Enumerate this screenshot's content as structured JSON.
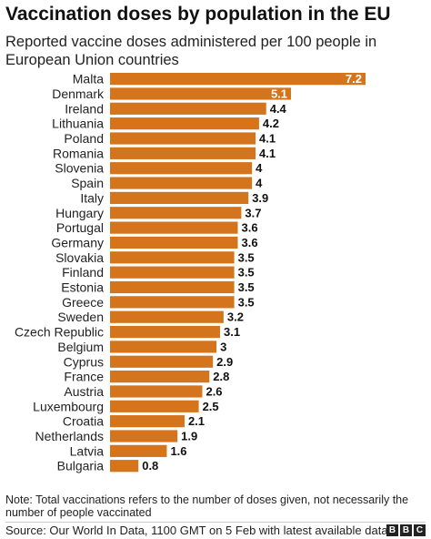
{
  "title": "Vaccination doses by population in the EU",
  "subtitle": "Reported vaccine doses administered per 100 people in European Union countries",
  "note": "Note: Total vaccinations refers to the number of doses given, not necessarily the number of people vaccinated",
  "source": "Source: Our World In Data, 1100 GMT on 5 Feb with latest available data",
  "logo": [
    "B",
    "B",
    "C"
  ],
  "colors": {
    "bar": "#d4751d",
    "inside_label": "#ffffff",
    "outside_label": "#111111"
  },
  "chart_data": {
    "type": "bar",
    "orientation": "horizontal",
    "categories": [
      "Malta",
      "Denmark",
      "Ireland",
      "Lithuania",
      "Poland",
      "Romania",
      "Slovenia",
      "Spain",
      "Italy",
      "Hungary",
      "Portugal",
      "Germany",
      "Slovakia",
      "Finland",
      "Estonia",
      "Greece",
      "Sweden",
      "Czech Republic",
      "Belgium",
      "Cyprus",
      "France",
      "Austria",
      "Luxembourg",
      "Croatia",
      "Netherlands",
      "Latvia",
      "Bulgaria"
    ],
    "values": [
      7.2,
      5.1,
      4.4,
      4.2,
      4.1,
      4.1,
      4,
      4,
      3.9,
      3.7,
      3.6,
      3.6,
      3.5,
      3.5,
      3.5,
      3.5,
      3.2,
      3.1,
      3,
      2.9,
      2.8,
      2.6,
      2.5,
      2.1,
      1.9,
      1.6,
      0.8
    ],
    "value_labels": [
      "7.2",
      "5.1",
      "4.4",
      "4.2",
      "4.1",
      "4.1",
      "4",
      "4",
      "3.9",
      "3.7",
      "3.6",
      "3.6",
      "3.5",
      "3.5",
      "3.5",
      "3.5",
      "3.2",
      "3.1",
      "3",
      "2.9",
      "2.8",
      "2.6",
      "2.5",
      "2.1",
      "1.9",
      "1.6",
      "0.8"
    ],
    "labels_inside": [
      "7.2",
      "5.1"
    ],
    "xlim": [
      0,
      7.2
    ],
    "grid": false,
    "legend": "none"
  }
}
